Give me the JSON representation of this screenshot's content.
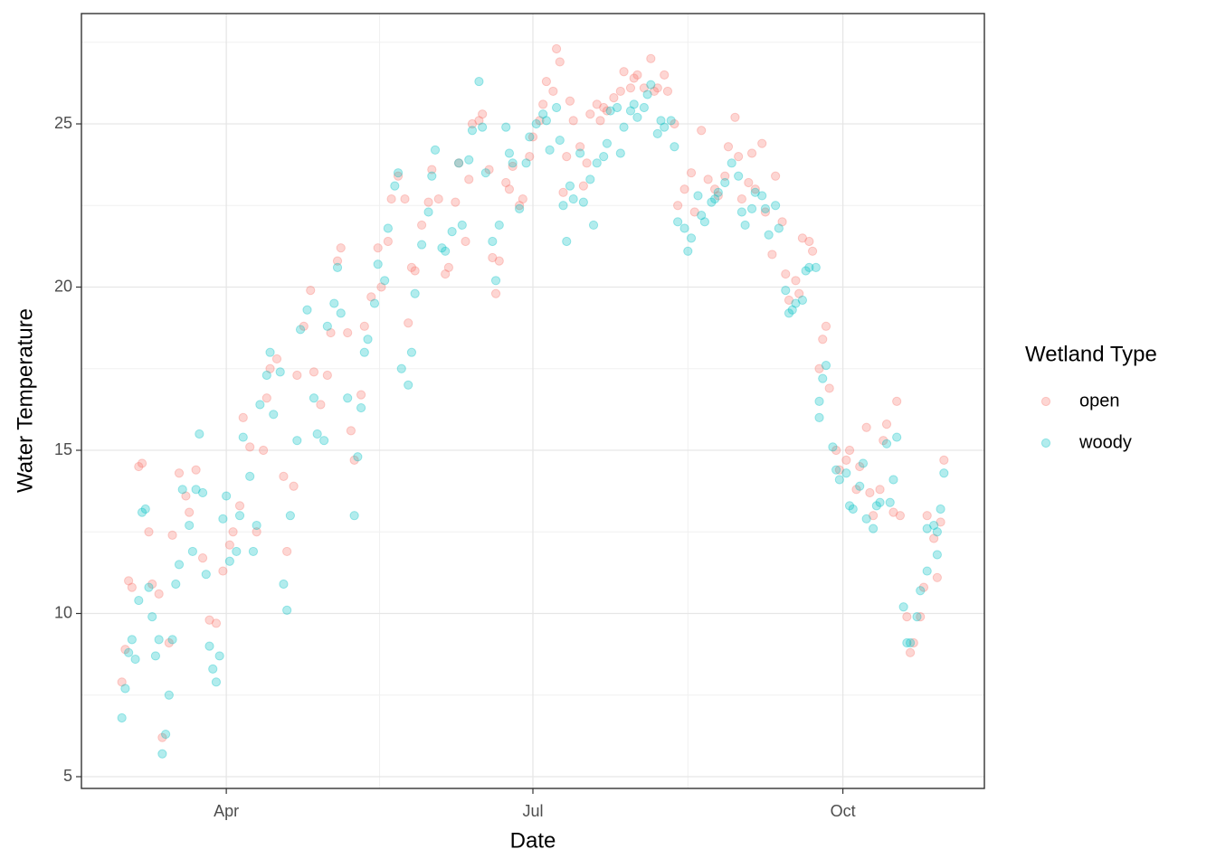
{
  "chart_data": {
    "type": "scatter",
    "x_label": "Date",
    "y_label": "Water Temperature",
    "legend_title": "Wetland Type",
    "legend": "right",
    "grid": true,
    "xlim": [
      48,
      316
    ],
    "xticks": [
      {
        "value": 91,
        "label": "Apr"
      },
      {
        "value": 182,
        "label": "Jul"
      },
      {
        "value": 274,
        "label": "Oct"
      }
    ],
    "ylim": [
      4.64,
      28.38
    ],
    "yticks": [
      5,
      10,
      15,
      20,
      25
    ],
    "series": [
      {
        "name": "open",
        "color": "#F8766D",
        "x": [
          60,
          61,
          62,
          63,
          65,
          66,
          68,
          69,
          71,
          72,
          74,
          75,
          77,
          79,
          80,
          82,
          84,
          86,
          88,
          90,
          92,
          93,
          95,
          96,
          98,
          100,
          102,
          103,
          104,
          106,
          108,
          109,
          111,
          112,
          114,
          116,
          117,
          119,
          121,
          122,
          124,
          125,
          127,
          128,
          129,
          131,
          132,
          134,
          136,
          137,
          139,
          140,
          142,
          144,
          145,
          146,
          147,
          149,
          151,
          152,
          154,
          156,
          157,
          159,
          160,
          162,
          163,
          164,
          166,
          167,
          169,
          170,
          171,
          172,
          174,
          175,
          176,
          178,
          179,
          181,
          182,
          184,
          185,
          186,
          188,
          189,
          190,
          191,
          192,
          193,
          194,
          196,
          197,
          198,
          199,
          201,
          202,
          203,
          204,
          206,
          208,
          209,
          211,
          212,
          213,
          215,
          217,
          218,
          219,
          221,
          222,
          224,
          225,
          227,
          229,
          230,
          232,
          234,
          236,
          237,
          239,
          240,
          242,
          243,
          244,
          246,
          247,
          248,
          250,
          251,
          253,
          254,
          256,
          257,
          258,
          260,
          261,
          262,
          264,
          265,
          267,
          268,
          269,
          270,
          272,
          273,
          275,
          276,
          278,
          279,
          281,
          282,
          283,
          285,
          286,
          287,
          289,
          290,
          291,
          293,
          294,
          295,
          297,
          298,
          299,
          301,
          302,
          303,
          304
        ],
        "values": [
          7.9,
          8.9,
          11.0,
          10.8,
          14.5,
          14.6,
          12.5,
          10.9,
          10.6,
          6.2,
          9.1,
          12.4,
          14.3,
          13.6,
          13.1,
          14.4,
          11.7,
          9.8,
          9.7,
          11.3,
          12.1,
          12.5,
          13.3,
          16.0,
          15.1,
          12.5,
          15.0,
          16.6,
          17.5,
          17.8,
          14.2,
          11.9,
          13.9,
          17.3,
          18.8,
          19.9,
          17.4,
          16.4,
          17.3,
          18.6,
          20.8,
          21.2,
          18.6,
          15.6,
          14.7,
          16.7,
          18.8,
          19.7,
          21.2,
          20.0,
          21.4,
          22.7,
          23.4,
          22.7,
          18.9,
          20.6,
          20.5,
          21.9,
          22.6,
          23.6,
          22.7,
          20.4,
          20.6,
          22.6,
          23.8,
          21.4,
          23.3,
          25.0,
          25.1,
          25.3,
          23.6,
          20.9,
          19.8,
          20.8,
          23.2,
          23.0,
          23.7,
          22.5,
          22.7,
          24.0,
          24.6,
          25.1,
          25.6,
          26.3,
          26.0,
          27.3,
          26.9,
          22.9,
          24.0,
          25.7,
          25.1,
          24.3,
          23.1,
          23.8,
          25.3,
          25.6,
          25.1,
          25.5,
          25.4,
          25.8,
          26.0,
          26.6,
          26.1,
          26.4,
          26.5,
          26.1,
          27.0,
          26.0,
          26.1,
          26.5,
          26.0,
          25.0,
          22.5,
          23.0,
          23.5,
          22.3,
          24.8,
          23.3,
          23.0,
          22.8,
          23.4,
          24.3,
          25.2,
          24.0,
          22.7,
          23.2,
          24.1,
          23.0,
          24.4,
          22.3,
          21.0,
          23.4,
          22.0,
          20.4,
          19.6,
          20.2,
          19.8,
          21.5,
          21.4,
          21.1,
          17.5,
          18.4,
          18.8,
          16.9,
          15.0,
          14.4,
          14.7,
          15.0,
          13.8,
          14.5,
          15.7,
          13.7,
          13.0,
          13.8,
          15.3,
          15.8,
          13.1,
          16.5,
          13.0,
          9.9,
          8.8,
          9.1,
          9.9,
          10.8,
          13.0,
          12.3,
          11.1,
          12.8,
          14.7
        ]
      },
      {
        "name": "woody",
        "color": "#00BFC4",
        "x": [
          60,
          61,
          62,
          63,
          64,
          65,
          66,
          67,
          68,
          69,
          70,
          71,
          72,
          73,
          74,
          75,
          76,
          77,
          78,
          80,
          81,
          82,
          83,
          84,
          85,
          86,
          87,
          88,
          89,
          90,
          91,
          92,
          94,
          95,
          96,
          98,
          99,
          100,
          101,
          103,
          104,
          105,
          107,
          108,
          109,
          110,
          112,
          113,
          115,
          117,
          118,
          120,
          121,
          123,
          124,
          125,
          127,
          129,
          130,
          131,
          132,
          133,
          135,
          136,
          138,
          139,
          141,
          142,
          143,
          145,
          146,
          147,
          149,
          151,
          152,
          153,
          155,
          156,
          158,
          160,
          161,
          163,
          164,
          166,
          167,
          168,
          170,
          171,
          172,
          174,
          175,
          176,
          178,
          180,
          181,
          183,
          185,
          186,
          187,
          189,
          190,
          191,
          192,
          193,
          194,
          196,
          197,
          199,
          200,
          201,
          203,
          204,
          205,
          207,
          208,
          209,
          211,
          212,
          213,
          215,
          216,
          217,
          219,
          220,
          221,
          223,
          224,
          225,
          227,
          228,
          229,
          231,
          232,
          233,
          235,
          236,
          237,
          239,
          241,
          243,
          244,
          245,
          247,
          248,
          250,
          251,
          252,
          254,
          255,
          257,
          258,
          259,
          260,
          262,
          263,
          264,
          266,
          267,
          267,
          268,
          269,
          271,
          272,
          273,
          275,
          276,
          277,
          279,
          280,
          281,
          283,
          284,
          285,
          287,
          288,
          289,
          290,
          292,
          293,
          294,
          296,
          297,
          299,
          299,
          301,
          302,
          302,
          303,
          304
        ],
        "values": [
          6.8,
          7.7,
          8.8,
          9.2,
          8.6,
          10.4,
          13.1,
          13.2,
          10.8,
          9.9,
          8.7,
          9.2,
          5.7,
          6.3,
          7.5,
          9.2,
          10.9,
          11.5,
          13.8,
          12.7,
          11.9,
          13.8,
          15.5,
          13.7,
          11.2,
          9.0,
          8.3,
          7.9,
          8.7,
          12.9,
          13.6,
          11.6,
          11.9,
          13.0,
          15.4,
          14.2,
          11.9,
          12.7,
          16.4,
          17.3,
          18.0,
          16.1,
          17.4,
          10.9,
          10.1,
          13.0,
          15.3,
          18.7,
          19.3,
          16.6,
          15.5,
          15.3,
          18.8,
          19.5,
          20.6,
          19.2,
          16.6,
          13.0,
          14.8,
          16.3,
          18.0,
          18.4,
          19.5,
          20.7,
          20.2,
          21.8,
          23.1,
          23.5,
          17.5,
          17.0,
          18.0,
          19.8,
          21.3,
          22.3,
          23.4,
          24.2,
          21.2,
          21.1,
          21.7,
          23.8,
          21.9,
          23.9,
          24.8,
          26.3,
          24.9,
          23.5,
          21.4,
          20.2,
          21.9,
          24.9,
          24.1,
          23.8,
          22.4,
          23.8,
          24.6,
          25.0,
          25.3,
          25.1,
          24.2,
          25.5,
          24.5,
          22.5,
          21.4,
          23.1,
          22.7,
          24.1,
          22.6,
          23.3,
          21.9,
          23.8,
          24.0,
          24.4,
          25.4,
          25.5,
          24.1,
          24.9,
          25.4,
          25.6,
          25.2,
          25.5,
          25.9,
          26.2,
          24.7,
          25.1,
          24.9,
          25.1,
          24.3,
          22.0,
          21.8,
          21.1,
          21.5,
          22.8,
          22.2,
          22.0,
          22.6,
          22.7,
          22.9,
          23.2,
          23.8,
          23.4,
          22.3,
          21.9,
          22.4,
          22.9,
          22.8,
          22.4,
          21.6,
          22.5,
          21.8,
          19.9,
          19.2,
          19.3,
          19.5,
          19.6,
          20.5,
          20.6,
          20.6,
          16.5,
          16.0,
          17.2,
          17.6,
          15.1,
          14.4,
          14.1,
          14.3,
          13.3,
          13.2,
          13.9,
          14.6,
          12.9,
          12.6,
          13.3,
          13.4,
          15.2,
          13.4,
          14.1,
          15.4,
          10.2,
          9.1,
          9.1,
          9.9,
          10.7,
          11.3,
          12.6,
          12.7,
          11.8,
          12.5,
          13.2,
          14.3
        ]
      }
    ]
  }
}
